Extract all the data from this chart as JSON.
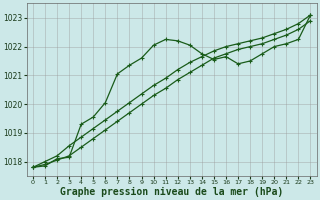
{
  "xlabel": "Graphe pression niveau de la mer (hPa)",
  "x": [
    0,
    1,
    2,
    3,
    4,
    5,
    6,
    7,
    8,
    9,
    10,
    11,
    12,
    13,
    14,
    15,
    16,
    17,
    18,
    19,
    20,
    21,
    22,
    23
  ],
  "line_wavy": [
    1017.8,
    1017.85,
    1018.1,
    1018.15,
    1019.3,
    1019.55,
    1020.05,
    1021.05,
    1021.35,
    1021.6,
    1022.05,
    1022.25,
    1022.2,
    1022.05,
    1021.75,
    1021.55,
    1021.65,
    1021.4,
    1021.5,
    1021.75,
    1022.0,
    1022.1,
    1022.25,
    1023.1
  ],
  "line_upper": [
    1017.8,
    1018.0,
    1018.2,
    1018.55,
    1018.85,
    1019.15,
    1019.45,
    1019.75,
    1020.05,
    1020.35,
    1020.65,
    1020.9,
    1021.2,
    1021.45,
    1021.65,
    1021.85,
    1022.0,
    1022.1,
    1022.2,
    1022.3,
    1022.45,
    1022.6,
    1022.8,
    1023.1
  ],
  "line_lower": [
    1017.8,
    1017.9,
    1018.05,
    1018.2,
    1018.5,
    1018.8,
    1019.1,
    1019.4,
    1019.7,
    1020.0,
    1020.3,
    1020.55,
    1020.85,
    1021.1,
    1021.35,
    1021.6,
    1021.75,
    1021.9,
    1022.0,
    1022.1,
    1022.25,
    1022.4,
    1022.6,
    1022.9
  ],
  "bg_color": "#cce8e8",
  "grid_color": "#aaaaaa",
  "line_color": "#1a5c1a",
  "ylim_min": 1017.5,
  "ylim_max": 1023.5,
  "yticks": [
    1018,
    1019,
    1020,
    1021,
    1022,
    1023
  ],
  "xticks": [
    0,
    1,
    2,
    3,
    4,
    5,
    6,
    7,
    8,
    9,
    10,
    11,
    12,
    13,
    14,
    15,
    16,
    17,
    18,
    19,
    20,
    21,
    22,
    23
  ],
  "tick_fontsize": 5.5,
  "xlabel_fontsize": 7.0
}
